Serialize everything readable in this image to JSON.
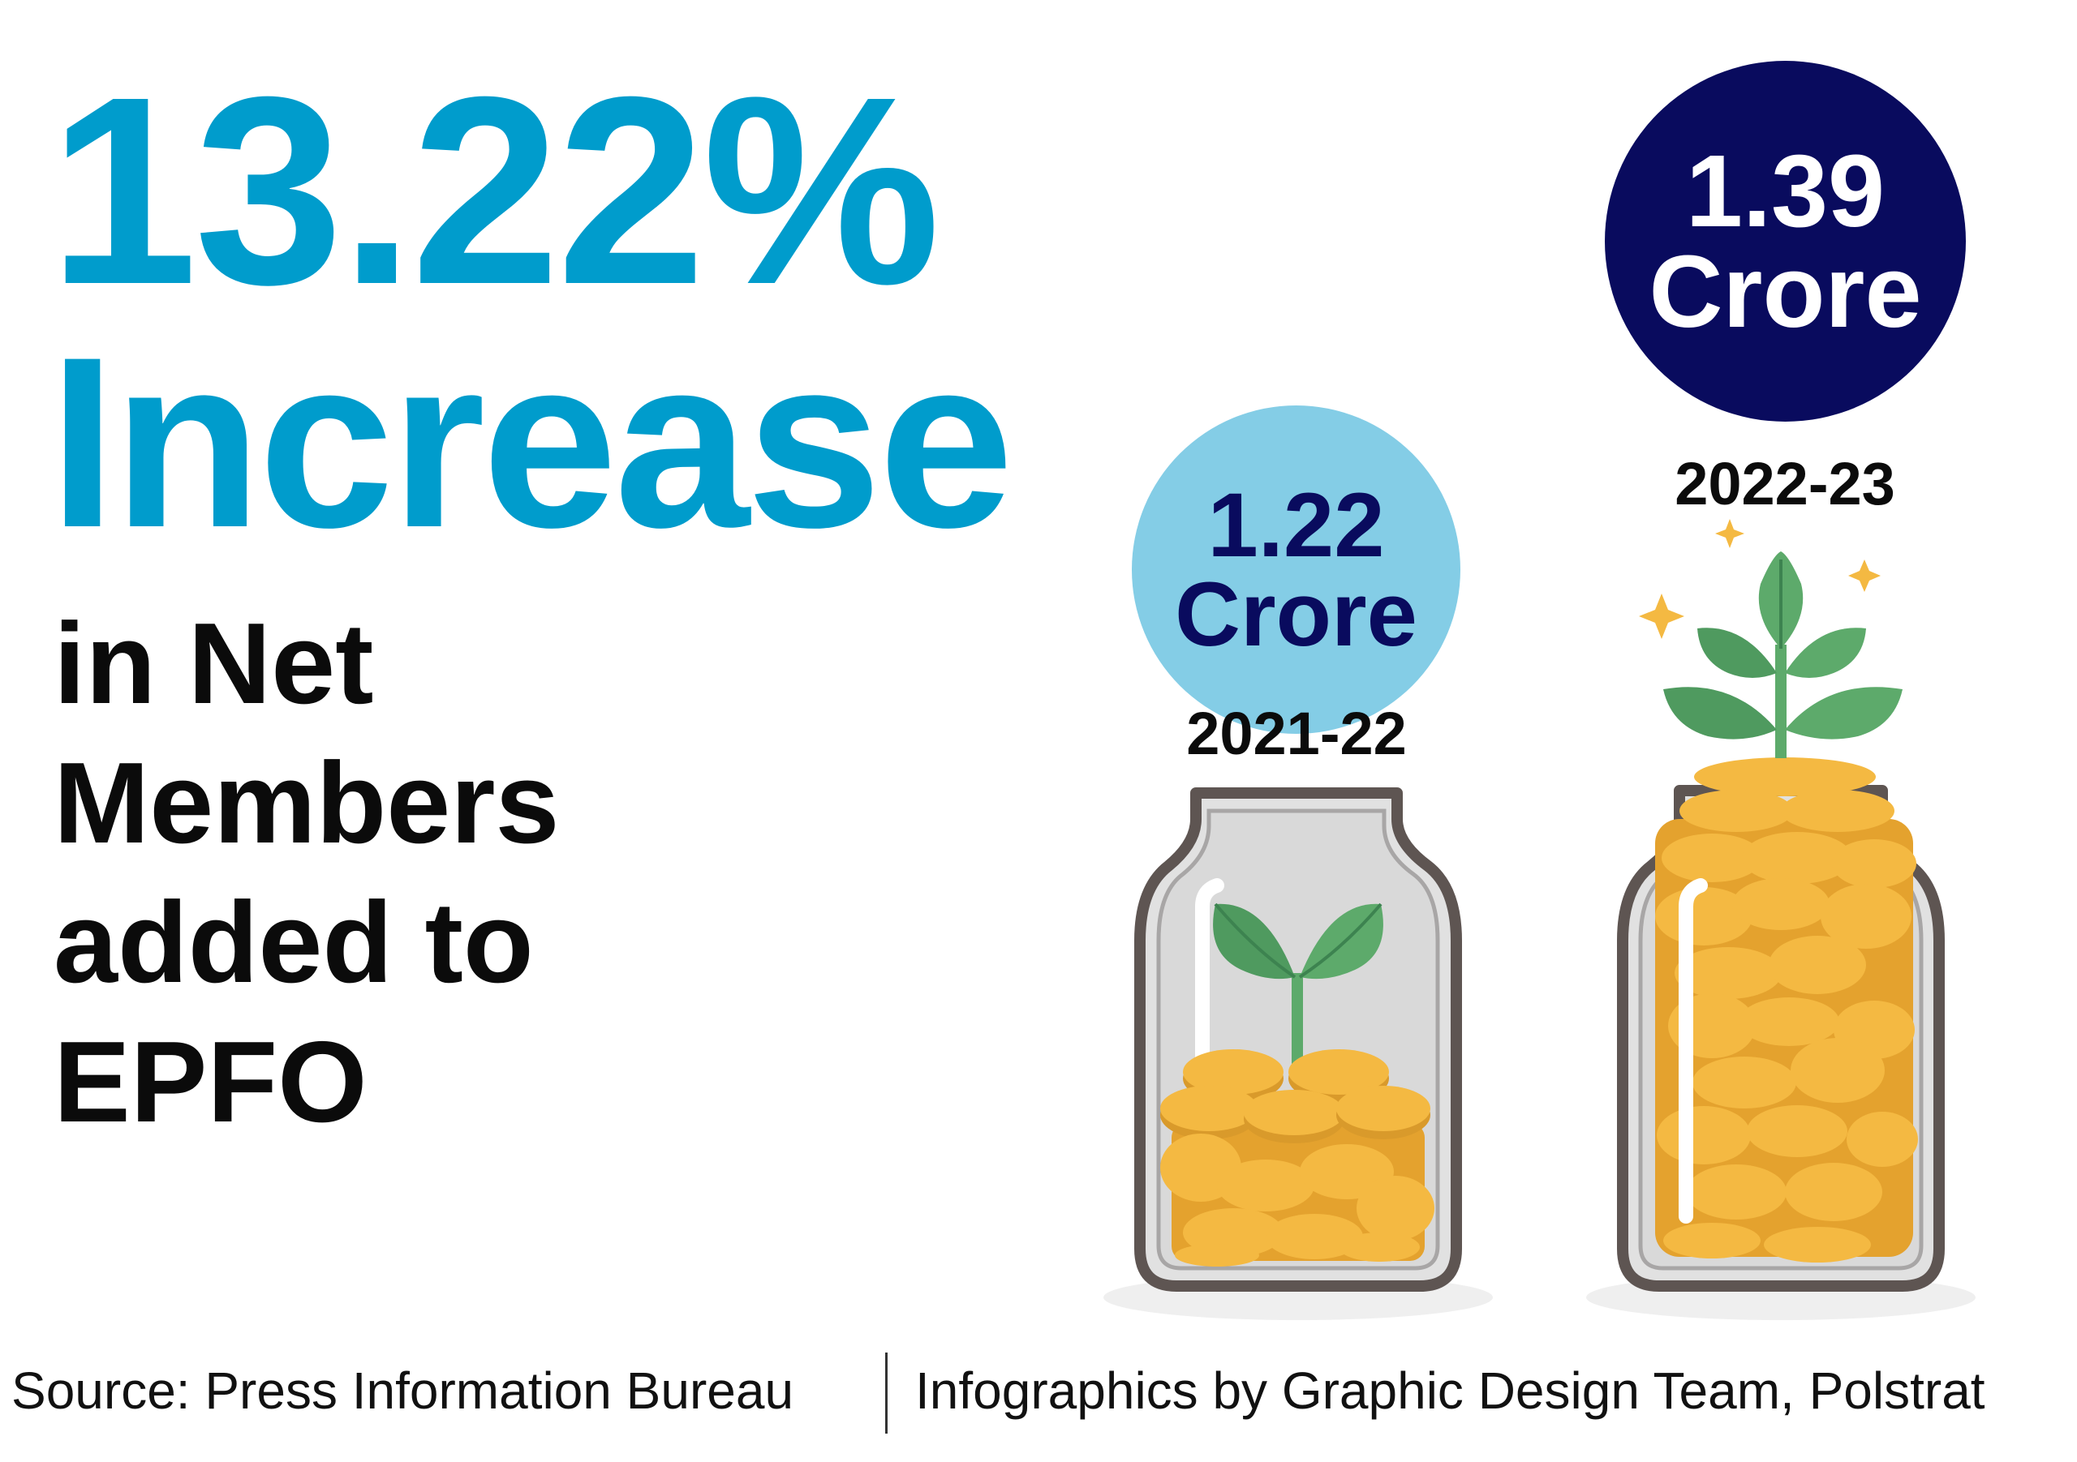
{
  "headline": {
    "percentage": "13.22%",
    "word": "Increase",
    "lines": [
      "in Net",
      "Members",
      "added to",
      "EPFO"
    ]
  },
  "stats": [
    {
      "value": "1.22",
      "unit": "Crore",
      "year": "2021-22",
      "circle_color": "#84cde6",
      "text_color": "#090b5e"
    },
    {
      "value": "1.39",
      "unit": "Crore",
      "year": "2022-23",
      "circle_color": "#090b5e",
      "text_color": "#ffffff"
    }
  ],
  "footer": {
    "source": "Source: Press Information Bureau",
    "credit": "Infographics by Graphic Design Team, Polstrat"
  },
  "colors": {
    "accent": "#009ccc",
    "navy": "#090b5e",
    "coin": "#f2b43a",
    "leaf": "#5daa6b",
    "jar_outline": "#5e5552"
  },
  "icons": [
    "jar-icon",
    "coin-stack-icon",
    "sprout-icon",
    "plant-icon",
    "sparkle-icon"
  ]
}
